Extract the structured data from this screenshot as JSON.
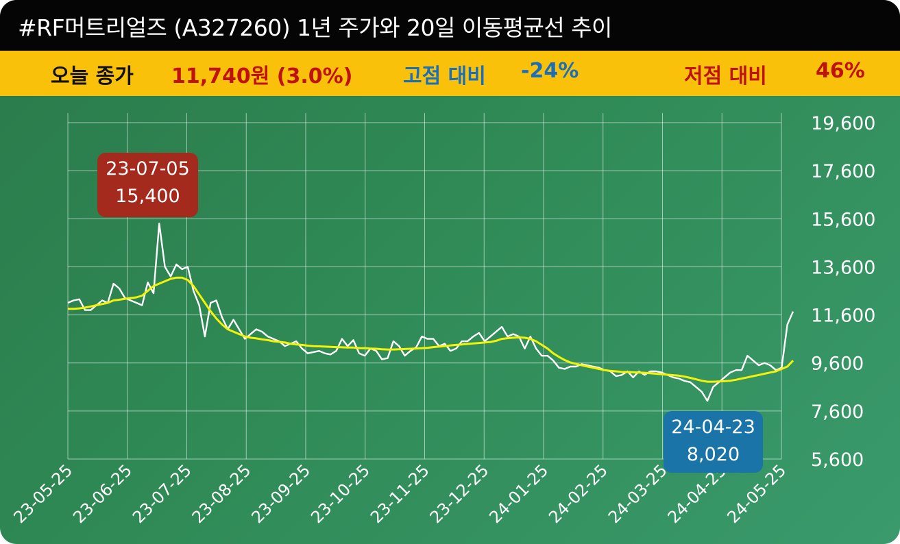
{
  "title": "#RF머트리얼즈 (A327260) 1년 주가와 20일 이동평균선 추이",
  "info": {
    "close_label": "오늘 종가",
    "close_value": "11,740원 (3.0%)",
    "high_label": "고점 대비",
    "high_value": "-24%",
    "low_label": "저점 대비",
    "low_value": "46%"
  },
  "colors": {
    "title_bg": "#050505",
    "info_bg": "#fac10a",
    "close_value": "#c0120c",
    "high": "#1a6fb8",
    "low": "#c0120c",
    "price_line": "#ffffff",
    "ma_line": "#f2f20a",
    "high_box": "#a42a1e",
    "low_box": "#1a74a8"
  },
  "annotations": {
    "high": {
      "date": "23-07-05",
      "value": "15,400"
    },
    "low": {
      "date": "24-04-23",
      "value": "8,020"
    }
  },
  "chart_data": {
    "type": "line",
    "x_ticks": [
      "23-05-25",
      "23-06-25",
      "23-07-25",
      "23-08-25",
      "23-09-25",
      "23-10-25",
      "23-11-25",
      "23-12-25",
      "24-01-25",
      "24-02-25",
      "24-03-25",
      "24-04-25",
      "24-05-25"
    ],
    "y_ticks": [
      "19,600",
      "17,600",
      "15,600",
      "13,600",
      "11,600",
      "9,600",
      "7,600",
      "5,600"
    ],
    "ylim": [
      5600,
      19600
    ],
    "grid": true,
    "series": [
      {
        "id": "price",
        "values": [
          12100,
          12200,
          12250,
          11800,
          11800,
          12000,
          12200,
          12100,
          12900,
          12700,
          12300,
          12200,
          12100,
          12000,
          12950,
          12500,
          15400,
          13600,
          13200,
          13700,
          13500,
          13600,
          12600,
          12000,
          10700,
          12100,
          12200,
          11500,
          11000,
          11400,
          11000,
          10600,
          10800,
          11000,
          10900,
          10700,
          10600,
          10500,
          10300,
          10400,
          10500,
          10200,
          10000,
          10050,
          10100,
          10000,
          9950,
          10100,
          10600,
          10300,
          10550,
          10000,
          9900,
          10200,
          10100,
          9750,
          9800,
          10500,
          10300,
          9900,
          10100,
          10250,
          10700,
          10600,
          10600,
          10300,
          10400,
          10100,
          10200,
          10500,
          10500,
          10700,
          10850,
          10500,
          10700,
          10900,
          11100,
          10700,
          10800,
          10700,
          10200,
          10700,
          10200,
          9900,
          9900,
          9700,
          9400,
          9350,
          9450,
          9450,
          9550,
          9500,
          9450,
          9400,
          9300,
          9250,
          9050,
          9100,
          9250,
          9000,
          9250,
          9100,
          9250,
          9250,
          9200,
          9100,
          9000,
          8950,
          8850,
          8800,
          8600,
          8400,
          8020,
          8600,
          8800,
          9000,
          9200,
          9300,
          9300,
          9900,
          9700,
          9500,
          9600,
          9500,
          9300,
          9400,
          11200,
          11740
        ]
      },
      {
        "id": "ma20",
        "values": [
          11850,
          11850,
          11870,
          11900,
          11950,
          12000,
          12050,
          12100,
          12200,
          12230,
          12270,
          12300,
          12330,
          12400,
          12600,
          12800,
          12900,
          13000,
          13100,
          13150,
          13150,
          13050,
          12800,
          12450,
          12100,
          11750,
          11450,
          11200,
          11000,
          10900,
          10800,
          10700,
          10650,
          10620,
          10580,
          10550,
          10500,
          10480,
          10450,
          10400,
          10370,
          10350,
          10320,
          10300,
          10290,
          10280,
          10270,
          10260,
          10250,
          10240,
          10240,
          10220,
          10210,
          10200,
          10190,
          10170,
          10160,
          10160,
          10170,
          10180,
          10190,
          10200,
          10210,
          10230,
          10260,
          10280,
          10300,
          10330,
          10350,
          10370,
          10390,
          10410,
          10430,
          10450,
          10470,
          10520,
          10600,
          10630,
          10650,
          10660,
          10650,
          10600,
          10500,
          10350,
          10200,
          10000,
          9850,
          9720,
          9620,
          9560,
          9500,
          9450,
          9400,
          9350,
          9300,
          9270,
          9250,
          9230,
          9220,
          9210,
          9200,
          9190,
          9170,
          9150,
          9130,
          9110,
          9090,
          9070,
          9030,
          8980,
          8920,
          8860,
          8820,
          8820,
          8830,
          8840,
          8860,
          8900,
          8950,
          9000,
          9050,
          9100,
          9150,
          9200,
          9250,
          9350,
          9450,
          9700
        ]
      }
    ]
  }
}
